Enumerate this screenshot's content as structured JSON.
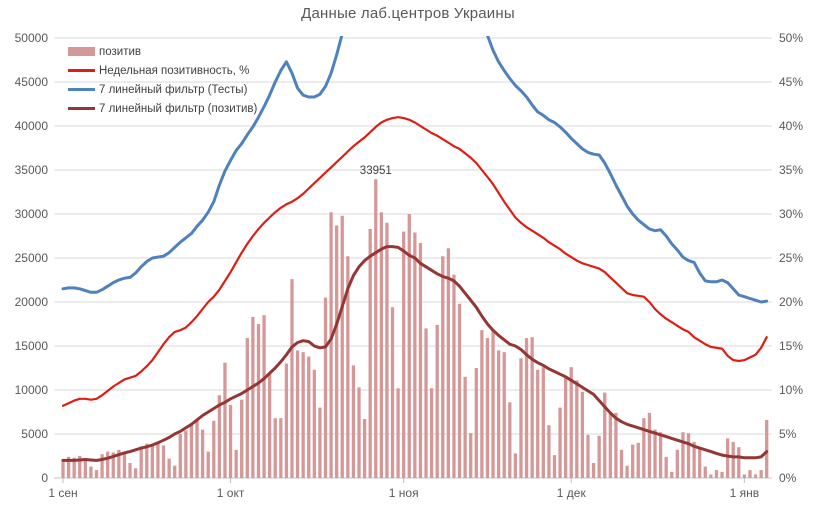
{
  "title": "Данные лаб.центров Украины",
  "annotation": {
    "text": "33951",
    "day_index": 56
  },
  "colors": {
    "bars": "#d59899",
    "positivity_line": "#dd1e14",
    "tests_line": "#4f81bd",
    "positive_filter_line": "#943634",
    "gridline": "#d9d9d9",
    "axis_line": "#c6c6c6",
    "axis_text": "#595959",
    "legend_text": "#404040",
    "annotation_text": "#404040"
  },
  "legend": {
    "items": [
      {
        "label": "позитив",
        "swatch": "bar",
        "color": "#d59899"
      },
      {
        "label": "Недельная позитивность, %",
        "swatch": "line",
        "color": "#dd1e14"
      },
      {
        "label": "7 линейный фильтр (Тесты)",
        "swatch": "line",
        "color": "#4f81bd"
      },
      {
        "label": "7 линейный фильтр (позитив)",
        "swatch": "line",
        "color": "#943634"
      }
    ]
  },
  "axes": {
    "left_ticks": [
      "0",
      "5000",
      "10000",
      "15000",
      "20000",
      "25000",
      "30000",
      "35000",
      "40000",
      "45000",
      "50000"
    ],
    "right_ticks": [
      "0%",
      "5%",
      "10%",
      "15%",
      "20%",
      "25%",
      "30%",
      "35%",
      "40%",
      "45%",
      "50%"
    ],
    "x_ticks": [
      {
        "label": "1 сен",
        "day_index": 0
      },
      {
        "label": "1 окт",
        "day_index": 30
      },
      {
        "label": "1 ноя",
        "day_index": 61
      },
      {
        "label": "1 дек",
        "day_index": 91
      },
      {
        "label": "1 янв",
        "day_index": 122
      }
    ]
  },
  "chart_data": {
    "type": "bar+line combo",
    "title": "Данные лаб.центров Украины",
    "x_unit": "day",
    "x_range": "1 сен – 5 янв, ежедневно (127 дней)",
    "n_points": 127,
    "left_axis": {
      "min": 0,
      "max": 50000,
      "step": 5000
    },
    "right_axis": {
      "min": 0,
      "max": 50,
      "step": 5,
      "unit": "%"
    },
    "grid": "horizontal only",
    "legend_position": "top-left inside plot",
    "peak_label": {
      "text": "33951",
      "day_index": 56
    },
    "bars": {
      "name": "позитив",
      "axis": "left",
      "color": "#d59899",
      "values": [
        2100,
        2400,
        2300,
        2500,
        2200,
        1300,
        900,
        2700,
        3000,
        2900,
        3200,
        2800,
        1700,
        1100,
        3600,
        3900,
        3800,
        4100,
        3700,
        2200,
        1400,
        5000,
        5400,
        6000,
        6500,
        5500,
        3000,
        6500,
        9400,
        13100,
        8300,
        3200,
        8900,
        15900,
        18300,
        17500,
        18500,
        11900,
        6800,
        6800,
        13000,
        22600,
        14500,
        14300,
        13800,
        12300,
        8000,
        20500,
        30200,
        28700,
        29800,
        25200,
        12800,
        10300,
        6700,
        28300,
        33951,
        30200,
        29000,
        19400,
        10200,
        28000,
        30000,
        27900,
        26700,
        17000,
        10200,
        17400,
        25200,
        26100,
        23100,
        19800,
        11500,
        5100,
        12500,
        16800,
        15900,
        16800,
        14500,
        14300,
        8600,
        2800,
        13600,
        15900,
        16000,
        12300,
        12600,
        6000,
        2600,
        8000,
        11400,
        12600,
        11100,
        9800,
        4900,
        1700,
        4800,
        9700,
        7400,
        7400,
        3200,
        1400,
        3800,
        4000,
        6800,
        7400,
        5500,
        5200,
        2400,
        700,
        3200,
        5200,
        5100,
        4100,
        3400,
        1300,
        400,
        900,
        700,
        4500,
        4100,
        3500,
        400,
        900,
        400,
        900,
        6600
      ]
    },
    "series": [
      {
        "name": "Недельная позитивность, %",
        "axis": "right",
        "color": "#dd1e14",
        "width": 2.2,
        "values": [
          8.2,
          8.5,
          8.8,
          9.0,
          9.0,
          8.9,
          9.0,
          9.4,
          9.9,
          10.4,
          10.8,
          11.2,
          11.4,
          11.6,
          12.1,
          12.7,
          13.4,
          14.3,
          15.2,
          16.0,
          16.6,
          16.8,
          17.1,
          17.7,
          18.4,
          19.2,
          20.0,
          20.6,
          21.4,
          22.4,
          23.4,
          24.5,
          25.6,
          26.6,
          27.5,
          28.3,
          29.0,
          29.6,
          30.2,
          30.7,
          31.1,
          31.4,
          31.8,
          32.3,
          32.9,
          33.5,
          34.1,
          34.7,
          35.3,
          35.9,
          36.5,
          37.1,
          37.7,
          38.2,
          38.7,
          39.3,
          39.9,
          40.4,
          40.7,
          40.9,
          41.0,
          40.9,
          40.7,
          40.4,
          40.0,
          39.6,
          39.2,
          38.9,
          38.5,
          38.1,
          37.7,
          37.4,
          36.9,
          36.4,
          35.8,
          35.0,
          34.2,
          33.4,
          32.4,
          31.4,
          30.5,
          29.6,
          29.0,
          28.5,
          28.1,
          27.7,
          27.3,
          26.8,
          26.4,
          26.0,
          25.5,
          25.1,
          24.7,
          24.4,
          24.2,
          24.0,
          23.8,
          23.4,
          22.8,
          22.2,
          21.6,
          21.0,
          20.8,
          20.7,
          20.6,
          20.0,
          19.2,
          18.6,
          18.1,
          17.7,
          17.3,
          16.9,
          16.6,
          16.0,
          15.6,
          15.2,
          14.9,
          14.8,
          14.7,
          13.9,
          13.4,
          13.3,
          13.4,
          13.7,
          14.0,
          14.8,
          16.0
        ]
      },
      {
        "name": "7 линейный фильтр (Тесты)",
        "axis": "left",
        "color": "#4f81bd",
        "width": 3,
        "clipped_above": 50000,
        "values": [
          21500,
          21600,
          21600,
          21500,
          21300,
          21100,
          21100,
          21400,
          21800,
          22200,
          22500,
          22700,
          22800,
          23300,
          24000,
          24600,
          25000,
          25100,
          25200,
          25600,
          26200,
          26800,
          27300,
          27800,
          28600,
          29300,
          30200,
          31400,
          33300,
          34900,
          36100,
          37200,
          38000,
          39000,
          39900,
          41000,
          42200,
          43500,
          45000,
          46300,
          47300,
          46000,
          44300,
          43500,
          43300,
          43300,
          43600,
          44500,
          46000,
          48100,
          50500,
          52500,
          54000,
          55000,
          55600,
          56000,
          56200,
          56000,
          55600,
          55200,
          55000,
          54800,
          54600,
          54500,
          54600,
          54800,
          54600,
          54200,
          53800,
          53400,
          53200,
          53000,
          52800,
          52600,
          52400,
          51600,
          50300,
          48600,
          47300,
          46300,
          45400,
          44600,
          44000,
          43300,
          42400,
          41600,
          41200,
          40700,
          40400,
          39900,
          39300,
          38600,
          38000,
          37400,
          37000,
          36800,
          36700,
          35800,
          34600,
          33300,
          32100,
          30900,
          30000,
          29300,
          28800,
          28300,
          28100,
          28200,
          27500,
          26600,
          25900,
          25100,
          24700,
          24500,
          23300,
          22400,
          22300,
          22300,
          22500,
          22200,
          21500,
          20800,
          20600,
          20400,
          20200,
          20000,
          20100
        ]
      },
      {
        "name": "7 линейный фильтр (позитив)",
        "axis": "left",
        "color": "#943634",
        "width": 3,
        "values": [
          2000,
          2000,
          2000,
          2050,
          2100,
          2050,
          2000,
          2100,
          2250,
          2450,
          2650,
          2850,
          3000,
          3200,
          3400,
          3550,
          3750,
          4000,
          4300,
          4600,
          5000,
          5300,
          5700,
          6100,
          6600,
          7100,
          7500,
          7900,
          8300,
          8600,
          9000,
          9300,
          9600,
          10000,
          10400,
          10800,
          11300,
          11900,
          12500,
          13200,
          14000,
          14900,
          15400,
          15600,
          15500,
          15000,
          14800,
          14900,
          15800,
          17500,
          19500,
          21500,
          23000,
          24000,
          24700,
          25200,
          25600,
          26000,
          26300,
          26300,
          26200,
          25800,
          25300,
          25000,
          24400,
          24000,
          23600,
          23200,
          22900,
          22700,
          22400,
          21800,
          21000,
          20200,
          19400,
          18400,
          17500,
          16800,
          16200,
          15700,
          15200,
          15000,
          14600,
          14000,
          13500,
          13100,
          12800,
          12400,
          12100,
          11800,
          11500,
          11100,
          10700,
          10300,
          9900,
          9500,
          8800,
          8100,
          7400,
          6800,
          6400,
          6100,
          5900,
          5700,
          5500,
          5300,
          5100,
          4900,
          4700,
          4500,
          4300,
          4100,
          3900,
          3600,
          3400,
          3200,
          3000,
          2800,
          2600,
          2500,
          2400,
          2400,
          2300,
          2300,
          2300,
          2400,
          3000
        ]
      }
    ]
  }
}
